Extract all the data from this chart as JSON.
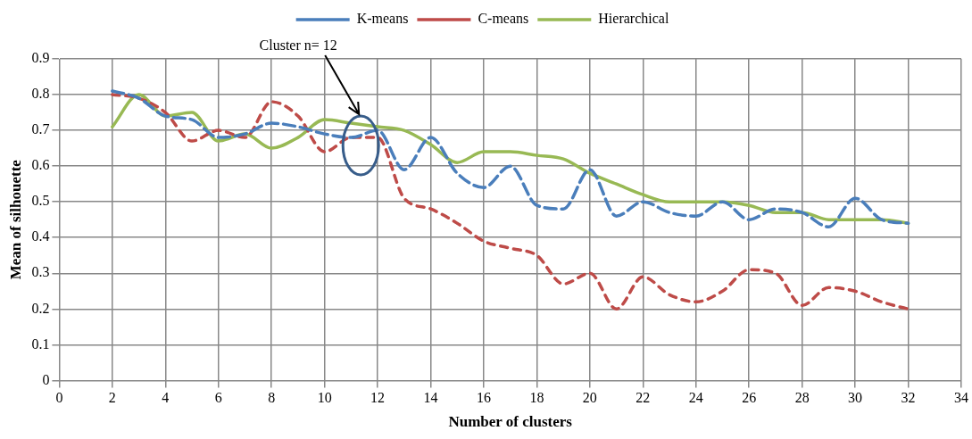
{
  "chart_data": {
    "type": "line",
    "xlabel": "Number of clusters",
    "ylabel": "Mean of silhouette",
    "x": [
      2,
      3,
      4,
      5,
      6,
      7,
      8,
      9,
      10,
      11,
      12,
      13,
      14,
      15,
      16,
      17,
      18,
      19,
      20,
      21,
      22,
      23,
      24,
      25,
      26,
      27,
      28,
      29,
      30,
      31,
      32
    ],
    "series": [
      {
        "name": "K-means",
        "color": "#4a7ebb",
        "line_style": "dashed",
        "values": [
          0.81,
          0.79,
          0.74,
          0.73,
          0.68,
          0.69,
          0.72,
          0.71,
          0.69,
          0.68,
          0.7,
          0.59,
          0.68,
          0.58,
          0.54,
          0.6,
          0.49,
          0.48,
          0.59,
          0.46,
          0.5,
          0.47,
          0.46,
          0.5,
          0.45,
          0.48,
          0.47,
          0.43,
          0.51,
          0.45,
          0.44
        ]
      },
      {
        "name": "C-means",
        "color": "#be4b48",
        "line_style": "dotted",
        "values": [
          0.8,
          0.79,
          0.75,
          0.67,
          0.7,
          0.68,
          0.78,
          0.74,
          0.64,
          0.68,
          0.68,
          0.51,
          0.48,
          0.44,
          0.39,
          0.37,
          0.35,
          0.27,
          0.3,
          0.2,
          0.29,
          0.24,
          0.22,
          0.25,
          0.31,
          0.3,
          0.21,
          0.26,
          0.25,
          0.22,
          0.2
        ]
      },
      {
        "name": "Hierarchical",
        "color": "#98b954",
        "line_style": "solid",
        "values": [
          0.71,
          0.8,
          0.74,
          0.75,
          0.67,
          0.69,
          0.65,
          0.68,
          0.73,
          0.72,
          0.71,
          0.7,
          0.66,
          0.61,
          0.64,
          0.64,
          0.63,
          0.62,
          0.58,
          0.55,
          0.52,
          0.5,
          0.5,
          0.5,
          0.49,
          0.47,
          0.47,
          0.45,
          0.45,
          0.45,
          0.44
        ]
      }
    ],
    "xlim": [
      0,
      34
    ],
    "xticks": [
      0,
      2,
      4,
      6,
      8,
      10,
      12,
      14,
      16,
      18,
      20,
      22,
      24,
      26,
      28,
      30,
      32,
      34
    ],
    "ylim": [
      0,
      0.9
    ],
    "yticks": [
      0,
      0.1,
      0.2,
      0.3,
      0.4,
      0.5,
      0.6,
      0.7,
      0.8,
      0.9
    ],
    "annotations": [
      "Cluster n= 12"
    ],
    "grid": true,
    "legend": "top",
    "marker": "none"
  }
}
